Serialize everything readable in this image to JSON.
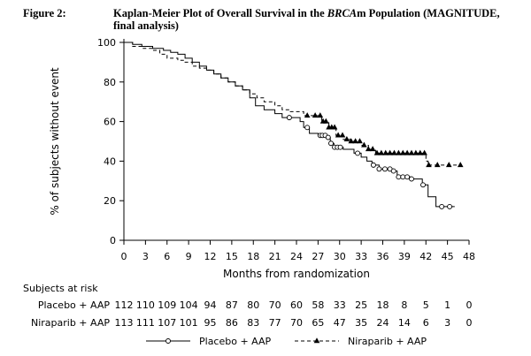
{
  "figure": {
    "label": "Figure 2:",
    "title_pre": "Kaplan-Meier Plot of Overall Survival in the ",
    "title_italic": "BRCA",
    "title_post": "m Population (MAGNITUDE, final analysis)"
  },
  "chart_data": {
    "type": "line",
    "subtype": "kaplan-meier",
    "xlabel": "Months from randomization",
    "ylabel": "% of subjects without event",
    "xlim": [
      0,
      48
    ],
    "ylim": [
      0,
      100
    ],
    "xticks": [
      0,
      3,
      6,
      9,
      12,
      15,
      18,
      21,
      24,
      27,
      30,
      33,
      36,
      39,
      42,
      45,
      48
    ],
    "yticks": [
      0,
      20,
      40,
      60,
      80,
      100
    ],
    "grid": false,
    "legend_position": "bottom-center",
    "series": [
      {
        "name": "Placebo + AAP",
        "style": "solid",
        "marker": "circle",
        "steps": [
          [
            0,
            100
          ],
          [
            1.2,
            99
          ],
          [
            2.5,
            98
          ],
          [
            4,
            97
          ],
          [
            5.5,
            96
          ],
          [
            6.5,
            95
          ],
          [
            7.5,
            94
          ],
          [
            8.5,
            92
          ],
          [
            9.5,
            90
          ],
          [
            10.5,
            88
          ],
          [
            11.5,
            86
          ],
          [
            12.5,
            84
          ],
          [
            13.5,
            82
          ],
          [
            14.5,
            80
          ],
          [
            15.5,
            78
          ],
          [
            16.5,
            76
          ],
          [
            17.5,
            72
          ],
          [
            18.3,
            68
          ],
          [
            19.5,
            66
          ],
          [
            21,
            64
          ],
          [
            22,
            62
          ],
          [
            24.5,
            60
          ],
          [
            25,
            57
          ],
          [
            25.8,
            54
          ],
          [
            27,
            53
          ],
          [
            28.2,
            52
          ],
          [
            28.7,
            49
          ],
          [
            29.2,
            47
          ],
          [
            30.5,
            46
          ],
          [
            32,
            44
          ],
          [
            33,
            42
          ],
          [
            33.8,
            40
          ],
          [
            34.5,
            38
          ],
          [
            35.5,
            36
          ],
          [
            37.5,
            35
          ],
          [
            38,
            32
          ],
          [
            40,
            31
          ],
          [
            41.5,
            28
          ],
          [
            42.3,
            22
          ],
          [
            43.4,
            17
          ],
          [
            46,
            17
          ]
        ],
        "censor_x": [
          23,
          25.5,
          27.3,
          27.6,
          28,
          28.4,
          28.8,
          29.3,
          29.7,
          30.1,
          32.5,
          34.7,
          35.5,
          36.3,
          37,
          37.5,
          38.2,
          38.8,
          39.4,
          40,
          41.6,
          44.2,
          45.3
        ]
      },
      {
        "name": "Niraparib + AAP",
        "style": "dashed",
        "marker": "triangle",
        "steps": [
          [
            0,
            100
          ],
          [
            1.2,
            98
          ],
          [
            2.5,
            97
          ],
          [
            4,
            96
          ],
          [
            5,
            94
          ],
          [
            6,
            92
          ],
          [
            7.5,
            91
          ],
          [
            8.5,
            90
          ],
          [
            9.5,
            88
          ],
          [
            10.5,
            87
          ],
          [
            11.5,
            86
          ],
          [
            12.5,
            84
          ],
          [
            13.5,
            82
          ],
          [
            14.5,
            80
          ],
          [
            15.5,
            78
          ],
          [
            16.5,
            76
          ],
          [
            17.5,
            74
          ],
          [
            18.5,
            72
          ],
          [
            19.5,
            70
          ],
          [
            21,
            68
          ],
          [
            22,
            66
          ],
          [
            23,
            65
          ],
          [
            25,
            63
          ],
          [
            27.5,
            60
          ],
          [
            28.5,
            57
          ],
          [
            29.5,
            53
          ],
          [
            30.5,
            51
          ],
          [
            31.5,
            50
          ],
          [
            33,
            48
          ],
          [
            34,
            46
          ],
          [
            35,
            44
          ],
          [
            42,
            40
          ],
          [
            42.3,
            38
          ],
          [
            47,
            38
          ]
        ],
        "censor_x": [
          25.5,
          26.6,
          27.3,
          27.7,
          28.1,
          28.5,
          28.9,
          29.3,
          29.8,
          30.4,
          31,
          31.6,
          32.2,
          32.8,
          33.4,
          34,
          34.6,
          35.2,
          35.8,
          36.4,
          37,
          37.6,
          38.2,
          38.8,
          39.4,
          40,
          40.6,
          41.2,
          41.8,
          42.4,
          43.6,
          45.2,
          46.8
        ]
      }
    ],
    "risk_table": {
      "title": "Subjects at risk",
      "rows": [
        {
          "label": "Placebo + AAP",
          "values": [
            112,
            110,
            109,
            104,
            94,
            87,
            80,
            70,
            60,
            58,
            33,
            25,
            18,
            8,
            5,
            1,
            0
          ]
        },
        {
          "label": "Niraparib + AAP",
          "values": [
            113,
            111,
            107,
            101,
            95,
            86,
            83,
            77,
            70,
            65,
            47,
            35,
            24,
            14,
            6,
            3,
            0
          ]
        }
      ]
    }
  }
}
